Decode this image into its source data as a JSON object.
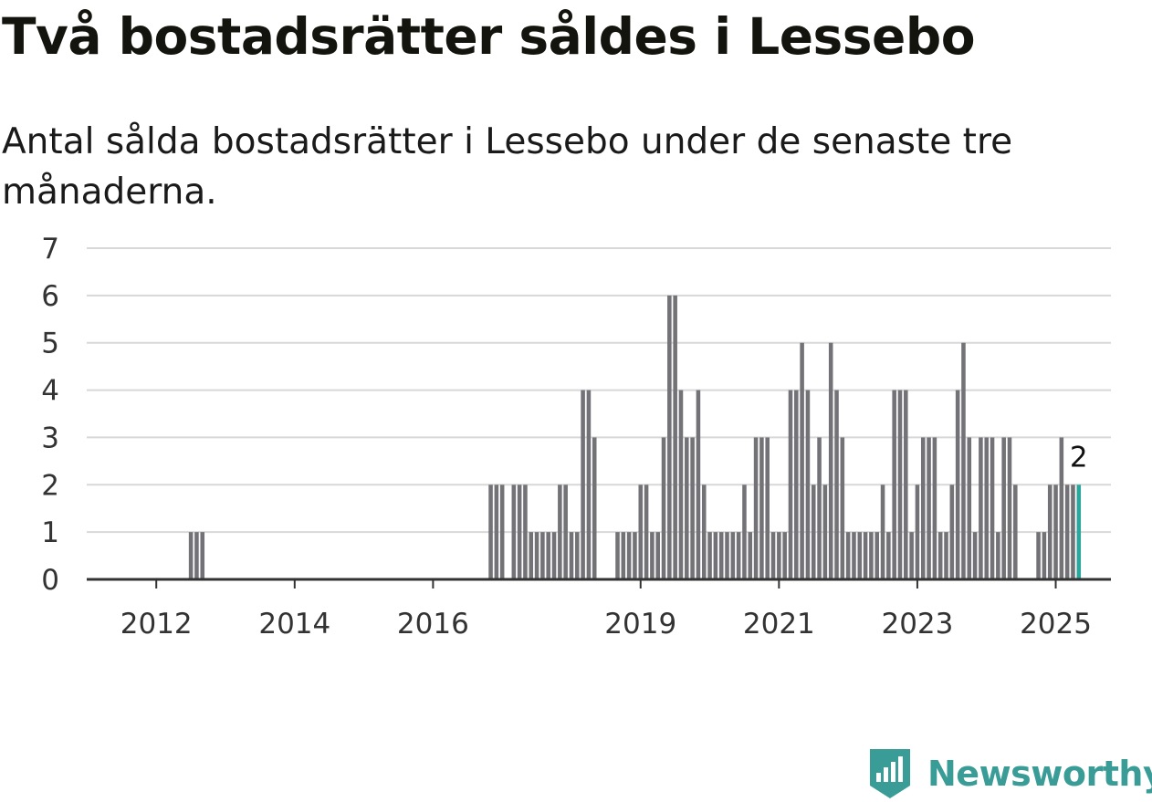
{
  "title": "Två bostadsrätter såldes i Lessebo",
  "subtitle": "Antal sålda bostadsrätter i Lessebo under de senaste tre månaderna.",
  "brand": {
    "name": "Newsworthy"
  },
  "colors": {
    "bar": "#737277",
    "highlight": "#2ba69c",
    "grid": "#d8d8d8",
    "axis": "#333333",
    "brand": "#3a9c96"
  },
  "chart_data": {
    "type": "bar",
    "title": "Två bostadsrätter såldes i Lessebo",
    "subtitle": "Antal sålda bostadsrätter i Lessebo under de senaste tre månaderna.",
    "xlabel": "",
    "ylabel": "",
    "ylim": [
      0,
      7
    ],
    "yticks": [
      0,
      1,
      2,
      3,
      4,
      5,
      6,
      7
    ],
    "xlim": [
      "2011-06",
      "2025-12"
    ],
    "xticks": [
      "2012",
      "2014",
      "2016",
      "2019",
      "2021",
      "2023",
      "2025"
    ],
    "grid": true,
    "last_value_label": "2",
    "x": [
      "2012-07",
      "2012-08",
      "2012-09",
      "2016-11",
      "2016-12",
      "2017-01",
      "2017-03",
      "2017-04",
      "2017-05",
      "2017-06",
      "2017-07",
      "2017-08",
      "2017-09",
      "2017-10",
      "2017-11",
      "2017-12",
      "2018-01",
      "2018-02",
      "2018-03",
      "2018-04",
      "2018-05",
      "2018-06",
      "2018-09",
      "2018-10",
      "2018-11",
      "2018-12",
      "2019-01",
      "2019-02",
      "2019-03",
      "2019-04",
      "2019-05",
      "2019-06",
      "2019-07",
      "2019-08",
      "2019-09",
      "2019-10",
      "2019-11",
      "2019-12",
      "2020-01",
      "2020-02",
      "2020-03",
      "2020-04",
      "2020-05",
      "2020-06",
      "2020-07",
      "2020-08",
      "2020-09",
      "2020-10",
      "2020-11",
      "2020-12",
      "2021-01",
      "2021-02",
      "2021-03",
      "2021-04",
      "2021-05",
      "2021-06",
      "2021-07",
      "2021-08",
      "2021-09",
      "2021-10",
      "2021-11",
      "2021-12",
      "2022-01",
      "2022-02",
      "2022-03",
      "2022-04",
      "2022-05",
      "2022-06",
      "2022-07",
      "2022-08",
      "2022-09",
      "2022-10",
      "2022-11",
      "2022-12",
      "2023-01",
      "2023-02",
      "2023-03",
      "2023-04",
      "2023-05",
      "2023-06",
      "2023-07",
      "2023-08",
      "2023-09",
      "2023-10",
      "2023-11",
      "2023-12",
      "2024-01",
      "2024-02",
      "2024-03",
      "2024-04",
      "2024-05",
      "2024-06",
      "2024-07",
      "2024-10",
      "2024-11",
      "2024-12",
      "2025-01",
      "2025-02",
      "2025-03",
      "2025-04",
      "2025-05"
    ],
    "values": [
      1,
      1,
      1,
      2,
      2,
      2,
      2,
      2,
      2,
      1,
      1,
      1,
      1,
      1,
      2,
      2,
      1,
      1,
      4,
      4,
      3,
      0,
      1,
      1,
      1,
      1,
      2,
      2,
      1,
      1,
      3,
      6,
      6,
      4,
      3,
      3,
      4,
      2,
      1,
      1,
      1,
      1,
      1,
      1,
      2,
      1,
      3,
      3,
      3,
      1,
      1,
      1,
      4,
      4,
      5,
      4,
      2,
      3,
      2,
      5,
      4,
      3,
      1,
      1,
      1,
      1,
      1,
      1,
      2,
      1,
      4,
      4,
      4,
      1,
      2,
      3,
      3,
      3,
      1,
      1,
      2,
      4,
      5,
      3,
      1,
      3,
      3,
      3,
      1,
      3,
      3,
      2,
      0,
      1,
      1,
      2,
      2,
      3,
      2,
      2,
      2
    ]
  }
}
